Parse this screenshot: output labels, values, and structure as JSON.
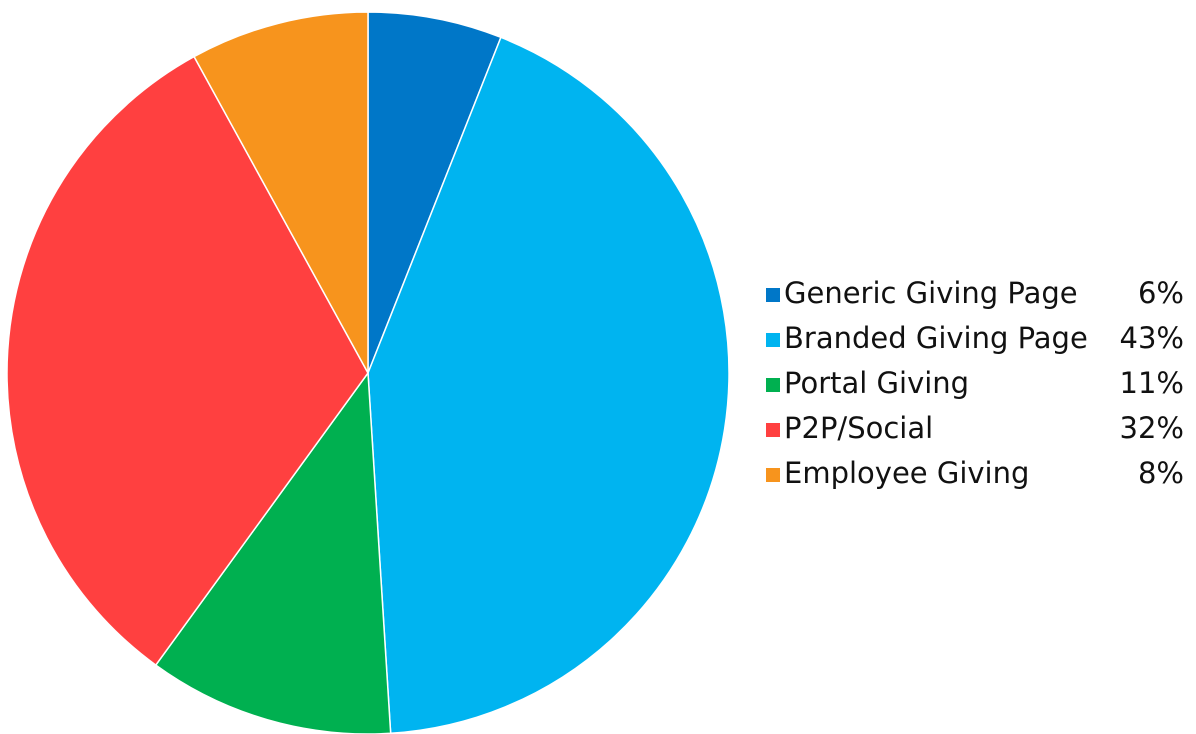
{
  "chart_data": {
    "type": "pie",
    "categories": [
      "Generic Giving Page",
      "Branded Giving Page",
      "Portal Giving",
      "P2P/Social",
      "Employee Giving"
    ],
    "values": [
      6,
      43,
      11,
      32,
      8
    ],
    "value_labels": [
      "6%",
      "43%",
      "11%",
      "32%",
      "8%"
    ],
    "colors": [
      "#0077c8",
      "#00b4f0",
      "#00b050",
      "#ff4040",
      "#f7941d"
    ],
    "legend": "right"
  }
}
